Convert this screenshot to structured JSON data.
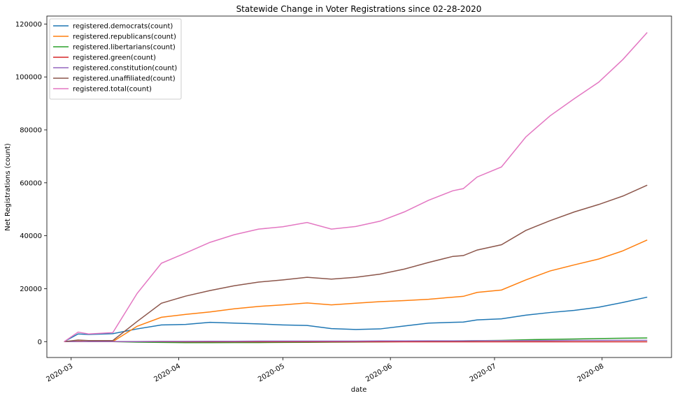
{
  "chart_data": {
    "type": "line",
    "title": "Statewide Change in Voter Registrations since 02-28-2020",
    "xlabel": "date",
    "ylabel": "Net Registrations (count)",
    "xlim": [
      "2020-02-23",
      "2020-08-21"
    ],
    "ylim": [
      -6000,
      123000
    ],
    "grid": false,
    "legend_position": "upper-left",
    "xticks": [
      {
        "date": "2020-03-01",
        "label": "2020-03"
      },
      {
        "date": "2020-04-01",
        "label": "2020-04"
      },
      {
        "date": "2020-05-01",
        "label": "2020-05"
      },
      {
        "date": "2020-06-01",
        "label": "2020-06"
      },
      {
        "date": "2020-07-01",
        "label": "2020-07"
      },
      {
        "date": "2020-08-01",
        "label": "2020-08"
      }
    ],
    "yticks": [
      0,
      20000,
      40000,
      60000,
      80000,
      100000,
      120000
    ],
    "x": [
      "2020-02-28",
      "2020-03-03",
      "2020-03-06",
      "2020-03-13",
      "2020-03-20",
      "2020-03-27",
      "2020-04-03",
      "2020-04-10",
      "2020-04-17",
      "2020-04-24",
      "2020-05-01",
      "2020-05-08",
      "2020-05-15",
      "2020-05-22",
      "2020-05-29",
      "2020-06-05",
      "2020-06-12",
      "2020-06-19",
      "2020-06-22",
      "2020-06-26",
      "2020-07-03",
      "2020-07-10",
      "2020-07-17",
      "2020-07-24",
      "2020-07-31",
      "2020-08-07",
      "2020-08-14"
    ],
    "series": [
      {
        "name": "registered.democrats(count)",
        "color": "#1f77b4",
        "values": [
          0,
          2900,
          2700,
          3000,
          4800,
          6300,
          6500,
          7300,
          7000,
          6700,
          6300,
          6100,
          4900,
          4600,
          4800,
          5900,
          7000,
          7300,
          7400,
          8200,
          8600,
          10000,
          11000,
          11800,
          13000,
          14800,
          16800
        ]
      },
      {
        "name": "registered.republicans(count)",
        "color": "#ff7f0e",
        "values": [
          0,
          200,
          0,
          0,
          5800,
          9200,
          10300,
          11200,
          12400,
          13300,
          13900,
          14600,
          13900,
          14500,
          15100,
          15500,
          16000,
          16800,
          17100,
          18600,
          19500,
          23300,
          26700,
          29000,
          31200,
          34300,
          38400
        ]
      },
      {
        "name": "registered.libertarians(count)",
        "color": "#2ca02c",
        "values": [
          0,
          0,
          0,
          0,
          -200,
          -300,
          -400,
          -400,
          -350,
          -350,
          -300,
          -250,
          -200,
          -150,
          -100,
          0,
          150,
          250,
          300,
          350,
          450,
          700,
          850,
          1000,
          1150,
          1300,
          1400
        ]
      },
      {
        "name": "registered.green(count)",
        "color": "#d62728",
        "values": [
          0,
          0,
          0,
          0,
          0,
          0,
          -50,
          -50,
          -50,
          -50,
          -50,
          -50,
          -50,
          -50,
          -50,
          -50,
          -50,
          -50,
          -50,
          -50,
          -50,
          -50,
          -50,
          -50,
          -50,
          -50,
          -50
        ]
      },
      {
        "name": "registered.constitution(count)",
        "color": "#9467bd",
        "values": [
          0,
          50,
          50,
          50,
          50,
          100,
          100,
          150,
          150,
          200,
          200,
          200,
          200,
          200,
          250,
          250,
          300,
          300,
          300,
          350,
          350,
          400,
          400,
          450,
          450,
          500,
          500
        ]
      },
      {
        "name": "registered.unaffiliated(count)",
        "color": "#8c564b",
        "values": [
          0,
          600,
          400,
          400,
          7600,
          14500,
          17200,
          19300,
          21100,
          22500,
          23300,
          24300,
          23600,
          24300,
          25500,
          27400,
          29900,
          32200,
          32500,
          34600,
          36600,
          42000,
          45700,
          49000,
          51800,
          55000,
          59100
        ]
      },
      {
        "name": "registered.total(count)",
        "color": "#e377c2",
        "values": [
          0,
          3600,
          2900,
          3400,
          18200,
          29600,
          33500,
          37500,
          40400,
          42500,
          43400,
          45000,
          42500,
          43500,
          45500,
          49000,
          53400,
          57000,
          57800,
          62200,
          66000,
          77300,
          85300,
          91800,
          98000,
          106600,
          116800
        ]
      }
    ]
  }
}
